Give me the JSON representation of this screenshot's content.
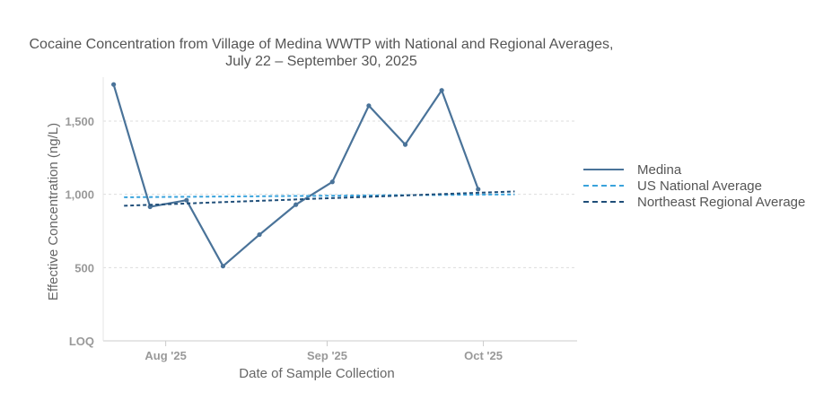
{
  "chart_data": {
    "type": "line",
    "title": [
      "Cocaine Concentration from Village of Medina WWTP with National and Regional Averages,",
      "July 22 – September 30, 2025"
    ],
    "xlabel": "Date of Sample Collection",
    "ylabel": "Effective Concentration (ng/L)",
    "xlim": [
      "2025-07-20",
      "2025-10-19"
    ],
    "ylim": [
      0,
      1800
    ],
    "x_ticks": [
      {
        "date": "2025-08-01",
        "label": "Aug '25"
      },
      {
        "date": "2025-09-01",
        "label": "Sep '25"
      },
      {
        "date": "2025-10-01",
        "label": "Oct '25"
      }
    ],
    "y_ticks": [
      {
        "value": 0,
        "label": "LOQ"
      },
      {
        "value": 500,
        "label": "500"
      },
      {
        "value": 1000,
        "label": "1,000"
      },
      {
        "value": 1500,
        "label": "1,500"
      }
    ],
    "grid": true,
    "legend": "right",
    "series": [
      {
        "name": "Medina",
        "style": "solid-markers",
        "color": "#4a7399",
        "points": [
          {
            "date": "2025-07-22",
            "value": 1750
          },
          {
            "date": "2025-07-29",
            "value": 915
          },
          {
            "date": "2025-08-05",
            "value": 960
          },
          {
            "date": "2025-08-12",
            "value": 510
          },
          {
            "date": "2025-08-19",
            "value": 725
          },
          {
            "date": "2025-08-26",
            "value": 930
          },
          {
            "date": "2025-09-02",
            "value": 1085
          },
          {
            "date": "2025-09-09",
            "value": 1605
          },
          {
            "date": "2025-09-16",
            "value": 1340
          },
          {
            "date": "2025-09-23",
            "value": 1710
          },
          {
            "date": "2025-09-30",
            "value": 1035
          }
        ]
      },
      {
        "name": "US National Average",
        "style": "dashed",
        "color": "#3aa3dc",
        "points": [
          {
            "date": "2025-07-24",
            "value": 980
          },
          {
            "date": "2025-10-07",
            "value": 1000
          }
        ]
      },
      {
        "name": "Northeast Regional Average",
        "style": "dashed",
        "color": "#1f4e79",
        "points": [
          {
            "date": "2025-07-24",
            "value": 922
          },
          {
            "date": "2025-10-07",
            "value": 1020
          }
        ]
      }
    ]
  }
}
